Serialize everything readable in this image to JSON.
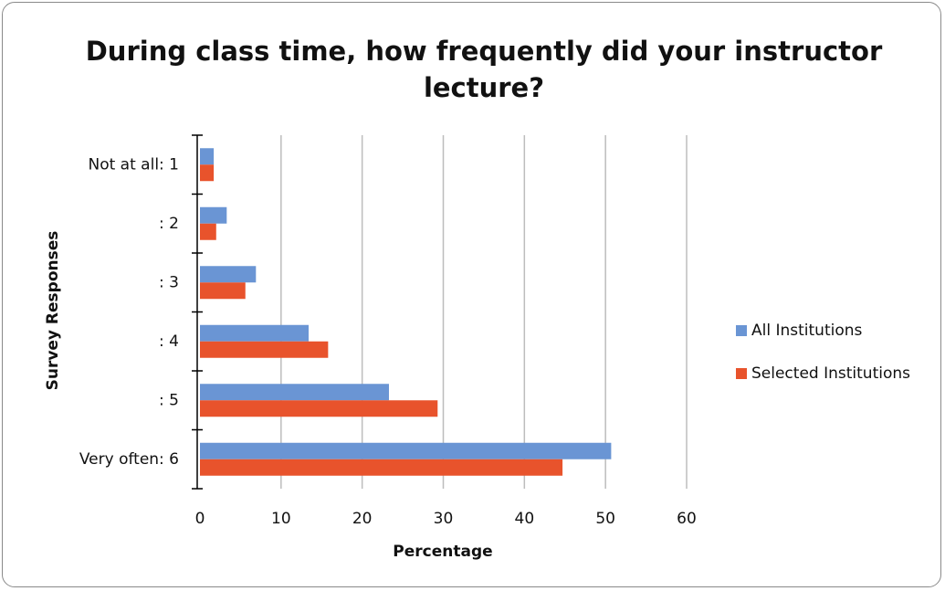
{
  "chart_data": {
    "type": "bar",
    "orientation": "horizontal",
    "title": "During class time, how frequently did your instructor lecture?",
    "x_label": "Percentage",
    "y_label": "Survey Responses",
    "categories": [
      "Not at all: 1",
      ": 2",
      ": 3",
      ": 4",
      ": 5",
      "Very often: 6"
    ],
    "series": [
      {
        "name": "All Institutions",
        "color": "#6a95d4",
        "values": [
          1.7,
          3.3,
          6.9,
          13.4,
          23.3,
          50.7
        ]
      },
      {
        "name": "Selected Institutions",
        "color": "#e8532c",
        "values": [
          1.7,
          2.0,
          5.6,
          15.8,
          29.3,
          44.7
        ]
      }
    ],
    "xlim": [
      0,
      60
    ],
    "xticks": [
      0,
      10,
      20,
      30,
      40,
      50,
      60
    ],
    "grid": true,
    "legend": "right"
  }
}
